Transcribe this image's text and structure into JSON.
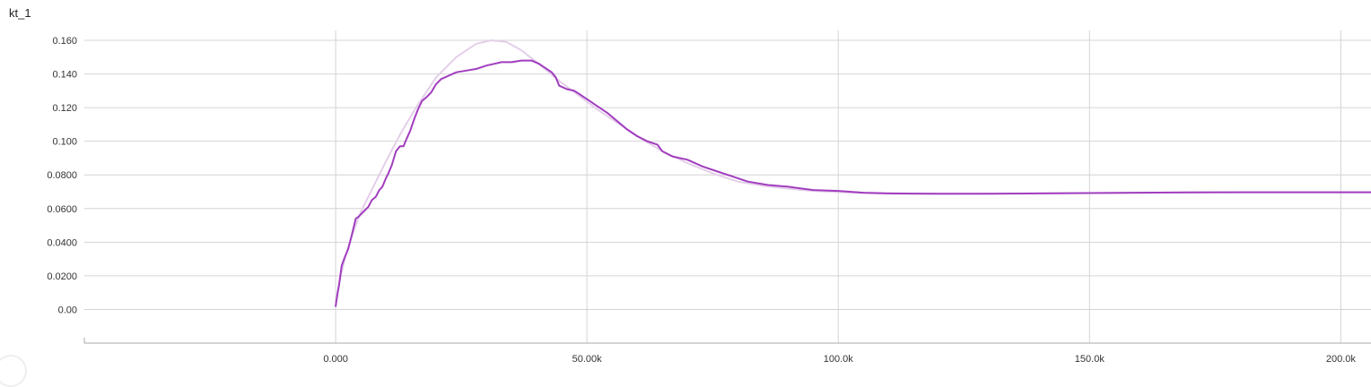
{
  "card": {
    "title": "kt_1"
  },
  "chart_data": {
    "type": "line",
    "title": "kt_1",
    "xlabel": "",
    "ylabel": "",
    "xlim": [
      -50000,
      206000
    ],
    "ylim": [
      -0.02,
      0.168
    ],
    "x_ticks": [
      0,
      50000,
      100000,
      150000,
      200000
    ],
    "x_tick_labels": [
      "0.000",
      "50.00k",
      "100.0k",
      "150.0k",
      "200.0k"
    ],
    "y_ticks": [
      0,
      0.02,
      0.04,
      0.06,
      0.08,
      0.1,
      0.12,
      0.14,
      0.16
    ],
    "y_tick_labels": [
      "0.00",
      "0.0200",
      "0.0400",
      "0.0600",
      "0.0800",
      "0.100",
      "0.120",
      "0.140",
      "0.160"
    ],
    "grid": true,
    "legend": "none",
    "colors": {
      "main_line": "#a13dbf",
      "smoothed_line": "#e4cfe9",
      "grid": "#d4d4d4",
      "tick_text": "#333333"
    },
    "series": [
      {
        "role": "smoothed",
        "x": [
          0,
          1000,
          2000,
          3000,
          5000,
          7000,
          10000,
          13000,
          16000,
          20000,
          24000,
          28000,
          31000,
          34000,
          37000,
          40000,
          44000,
          48000,
          52000,
          56000,
          60000,
          65000,
          70000,
          75000,
          80000,
          85000,
          90000,
          95000,
          100000,
          105000,
          110000,
          120000,
          130000,
          140000,
          150000,
          160000,
          170000,
          180000,
          190000,
          200000,
          206000
        ],
        "y": [
          0.005,
          0.02,
          0.032,
          0.042,
          0.058,
          0.07,
          0.088,
          0.105,
          0.12,
          0.138,
          0.15,
          0.158,
          0.16,
          0.159,
          0.154,
          0.147,
          0.137,
          0.128,
          0.119,
          0.111,
          0.103,
          0.094,
          0.087,
          0.081,
          0.076,
          0.0735,
          0.0718,
          0.0705,
          0.0698,
          0.0692,
          0.0689,
          0.0687,
          0.0688,
          0.069,
          0.0692,
          0.0694,
          0.0696,
          0.0697,
          0.0697,
          0.0697,
          0.0697
        ]
      },
      {
        "role": "main",
        "x": [
          0,
          300,
          700,
          1200,
          1800,
          2500,
          3200,
          4000,
          4500,
          5500,
          6500,
          7200,
          8000,
          8700,
          9300,
          10000,
          10500,
          11200,
          12000,
          12800,
          13500,
          14200,
          14800,
          15600,
          16400,
          17200,
          18000,
          19000,
          20000,
          21000,
          22500,
          24000,
          26000,
          28000,
          30000,
          31500,
          33000,
          35000,
          37000,
          39000,
          40500,
          42000,
          43000,
          43800,
          44500,
          46000,
          47500,
          48500,
          50000,
          52000,
          54000,
          56000,
          58000,
          60000,
          62000,
          64000,
          65000,
          67000,
          70000,
          73000,
          76000,
          79000,
          82000,
          86000,
          90000,
          95000,
          100000,
          105000,
          110000,
          120000,
          130000,
          140000,
          150000,
          160000,
          170000,
          180000,
          190000,
          200000,
          206000
        ],
        "y": [
          0.002,
          0.008,
          0.015,
          0.026,
          0.031,
          0.036,
          0.044,
          0.054,
          0.055,
          0.058,
          0.061,
          0.065,
          0.067,
          0.071,
          0.073,
          0.078,
          0.081,
          0.086,
          0.094,
          0.097,
          0.097,
          0.102,
          0.106,
          0.113,
          0.119,
          0.124,
          0.126,
          0.129,
          0.134,
          0.137,
          0.139,
          0.141,
          0.142,
          0.143,
          0.145,
          0.146,
          0.147,
          0.147,
          0.148,
          0.148,
          0.146,
          0.143,
          0.141,
          0.138,
          0.133,
          0.131,
          0.13,
          0.128,
          0.125,
          0.121,
          0.117,
          0.112,
          0.107,
          0.103,
          0.1,
          0.098,
          0.094,
          0.091,
          0.089,
          0.085,
          0.082,
          0.079,
          0.076,
          0.074,
          0.073,
          0.071,
          0.0705,
          0.0694,
          0.069,
          0.0688,
          0.0688,
          0.069,
          0.0692,
          0.0694,
          0.0696,
          0.0697,
          0.0697,
          0.0697,
          0.0697
        ]
      }
    ]
  }
}
